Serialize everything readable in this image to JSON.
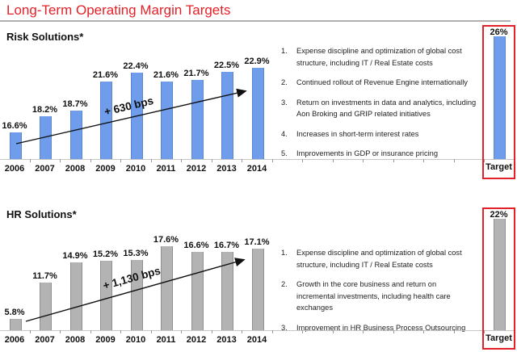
{
  "title": "Long-Term Operating Margin Targets",
  "accent_red": "#e32128",
  "chart_data": [
    {
      "type": "bar",
      "section_title": "Risk Solutions*",
      "categories": [
        "2006",
        "2007",
        "2008",
        "2009",
        "2010",
        "2011",
        "2012",
        "2013",
        "2014"
      ],
      "values": [
        16.6,
        18.2,
        18.7,
        21.6,
        22.4,
        21.6,
        21.7,
        22.5,
        22.9
      ],
      "value_labels": [
        "16.6%",
        "18.2%",
        "18.7%",
        "21.6%",
        "22.4%",
        "21.6%",
        "21.7%",
        "22.5%",
        "22.9%"
      ],
      "ylim": [
        14,
        27
      ],
      "grid": false,
      "bar_color": "#6f9ceb",
      "bar_border": "#5a86cf",
      "annotation": "+ 630 bps",
      "target": {
        "label": "Target",
        "value": 26,
        "value_label": "26%"
      },
      "notes": [
        "Expense discipline and optimization of global cost structure, including IT / Real Estate costs",
        "Continued rollout of Revenue Engine internationally",
        "Return on investments in data and analytics, including Aon Broking and GRIP related initiatives",
        "Increases in short-term interest rates",
        "Improvements in GDP or insurance pricing"
      ]
    },
    {
      "type": "bar",
      "section_title": "HR Solutions*",
      "categories": [
        "2006",
        "2007",
        "2008",
        "2009",
        "2010",
        "2011",
        "2012",
        "2013",
        "2014"
      ],
      "values": [
        5.8,
        11.7,
        14.9,
        15.2,
        15.3,
        17.6,
        16.6,
        16.7,
        17.1
      ],
      "value_labels": [
        "5.8%",
        "11.7%",
        "14.9%",
        "15.2%",
        "15.3%",
        "17.6%",
        "16.6%",
        "16.7%",
        "17.1%"
      ],
      "ylim": [
        4,
        22.5
      ],
      "grid": false,
      "bar_color": "#b3b3b3",
      "bar_border": "#8f8f8f",
      "annotation": "+ 1,130 bps",
      "target": {
        "label": "Target",
        "value": 22,
        "value_label": "22%"
      },
      "notes": [
        "Expense discipline and optimization of global cost structure, including IT / Real Estate costs",
        "Growth in the core business and return on incremental investments, including health care exchanges",
        "Improvement in HR Business Process Outsourcing"
      ]
    }
  ]
}
